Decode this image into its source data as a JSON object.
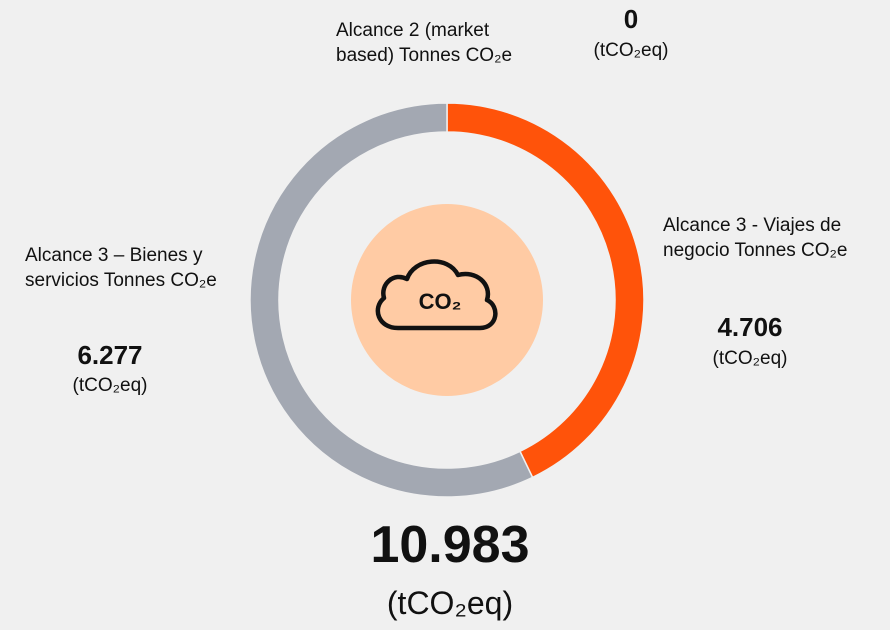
{
  "chart_data": {
    "type": "pie",
    "donut": true,
    "categories": [
      "Alcance 3 - Viajes de negocio Tonnes CO₂e",
      "Alcance 3 – Bienes y servicios Tonnes CO₂e",
      "Alcance 2 (market based) Tonnes CO₂e"
    ],
    "values": [
      4706,
      6277,
      0
    ],
    "value_labels": [
      "4.706",
      "6.277",
      "0"
    ],
    "colors": [
      "#ff530a",
      "#a3a8b2",
      "#7f7f7f"
    ],
    "unit": "(tCO₂eq)",
    "total": "10.983",
    "icon_label": "CO₂"
  }
}
